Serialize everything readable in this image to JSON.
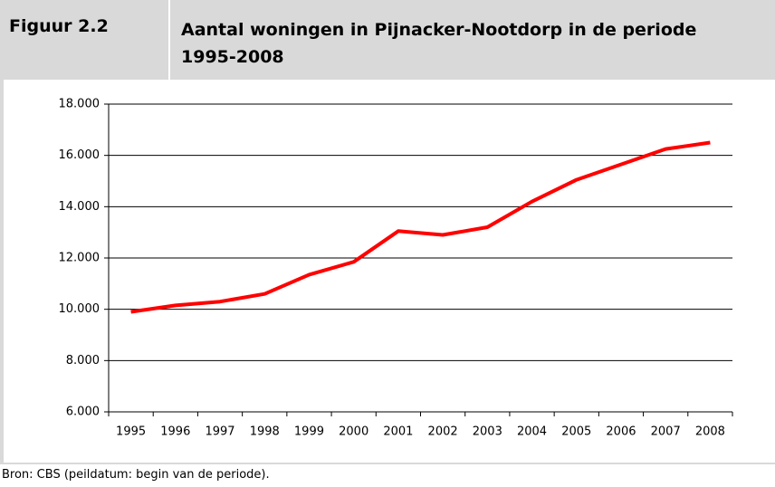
{
  "chart_data": {
    "type": "line",
    "label": "Figuur 2.2",
    "title": "Aantal woningen in Pijnacker-Nootdorp in de periode 1995-2008",
    "source": "Bron: CBS (peildatum: begin van de periode).",
    "categories": [
      "1995",
      "1996",
      "1997",
      "1998",
      "1999",
      "2000",
      "2001",
      "2002",
      "2003",
      "2004",
      "2005",
      "2006",
      "2007",
      "2008"
    ],
    "values": [
      9900,
      10150,
      10300,
      10600,
      11350,
      11850,
      13050,
      12900,
      13200,
      14200,
      15050,
      15650,
      16250,
      16500
    ],
    "color": "#ff0000",
    "ylim": [
      6000,
      18000
    ],
    "yticks": [
      {
        "value": 6000,
        "label": "6.000"
      },
      {
        "value": 8000,
        "label": "8.000"
      },
      {
        "value": 10000,
        "label": "10.000"
      },
      {
        "value": 12000,
        "label": "12.000"
      },
      {
        "value": 14000,
        "label": "14.000"
      },
      {
        "value": 16000,
        "label": "16.000"
      },
      {
        "value": 18000,
        "label": "18.000"
      }
    ],
    "grid": true
  }
}
